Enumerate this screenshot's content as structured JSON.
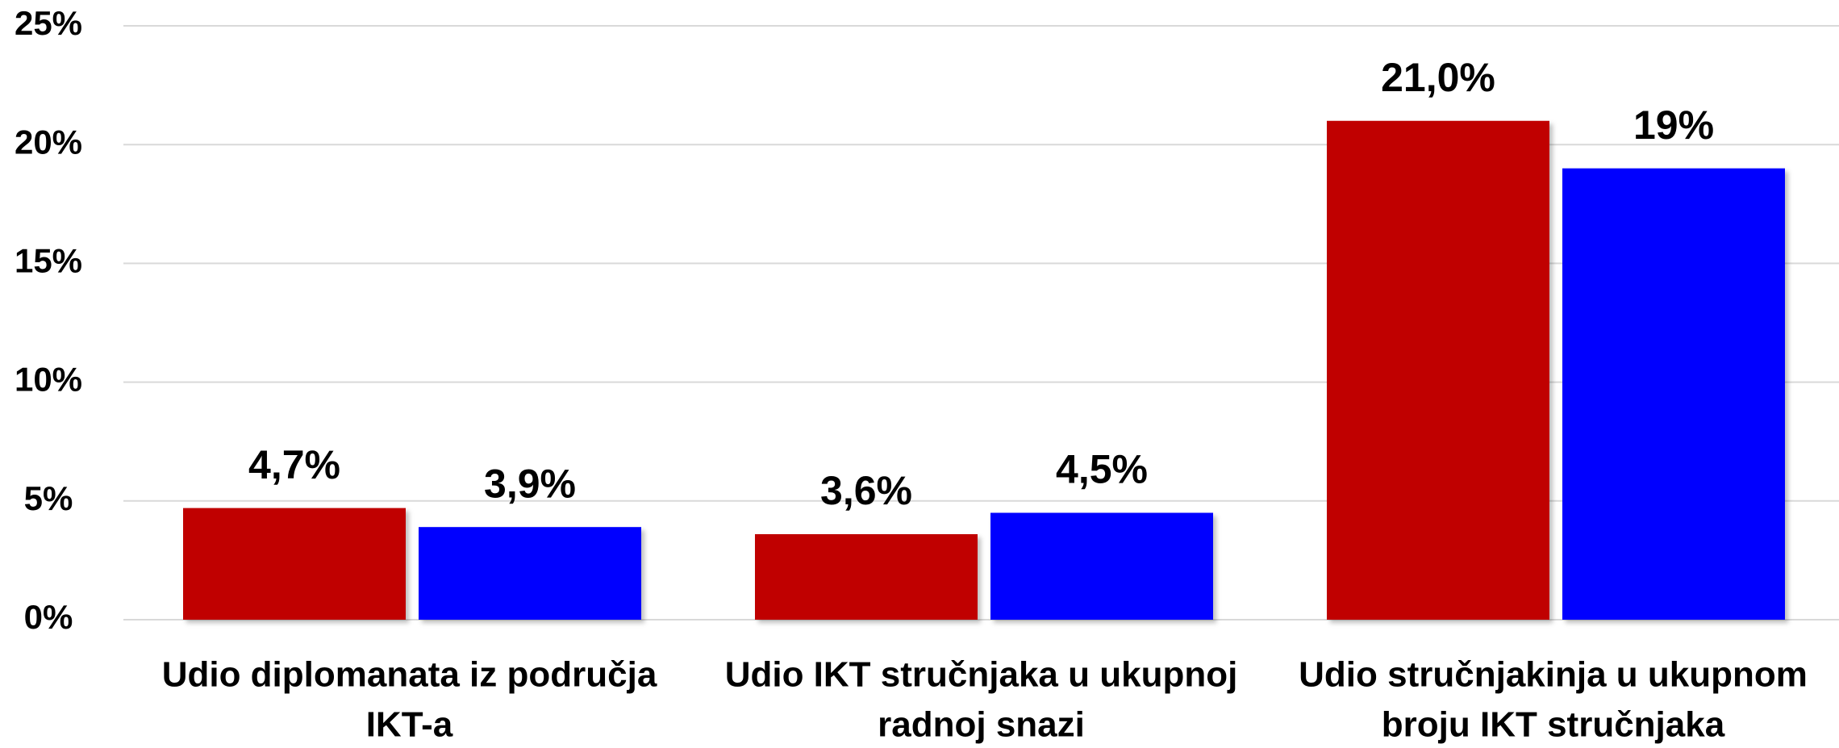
{
  "chart_data": {
    "type": "bar",
    "categories": [
      [
        "Udio diplomanata iz područja",
        "IKT-a"
      ],
      [
        "Udio IKT stručnjaka u ukupnoj",
        "radnoj snazi"
      ],
      [
        "Udio stručnjakinja u ukupnom",
        "broju IKT stručnjaka"
      ]
    ],
    "series": [
      {
        "color": "#c00000",
        "values": [
          4.7,
          3.6,
          21.0
        ],
        "value_labels": [
          "4,7%",
          "3,6%",
          "21,0%"
        ]
      },
      {
        "color": "#0000ff",
        "values": [
          3.9,
          4.5,
          19
        ],
        "value_labels": [
          "3,9%",
          "4,5%",
          "19%"
        ]
      }
    ],
    "ylim": [
      0,
      25
    ],
    "yticks": [
      {
        "value": 0,
        "label": "0%"
      },
      {
        "value": 5,
        "label": "5%"
      },
      {
        "value": 10,
        "label": "10%"
      },
      {
        "value": 15,
        "label": "15%"
      },
      {
        "value": 20,
        "label": "20%"
      },
      {
        "value": 25,
        "label": "25%"
      }
    ],
    "grid": true
  }
}
